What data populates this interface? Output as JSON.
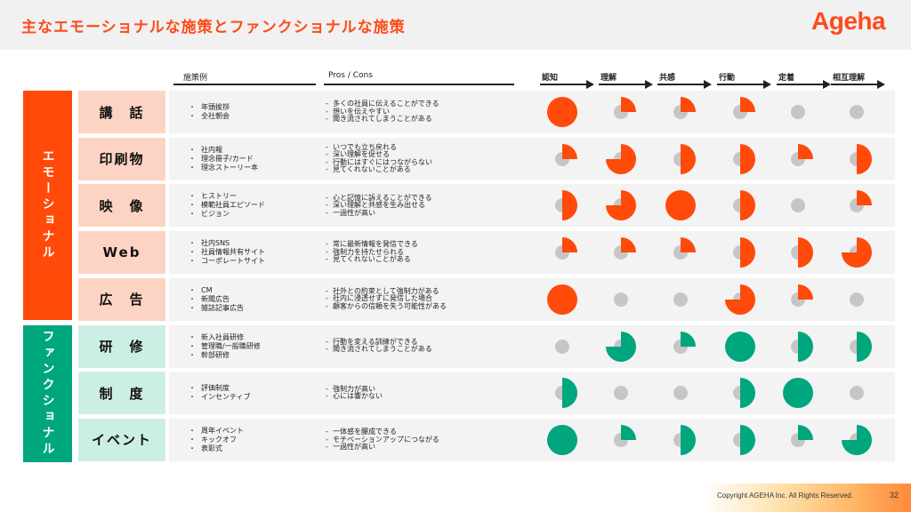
{
  "title": "主なエモーショナルな施策とファンクショナルな施策",
  "logo": "Ageha",
  "columns": {
    "examples": "施策例",
    "pros_cons": "Pros / Cons"
  },
  "stages": [
    "認知",
    "理解",
    "共感",
    "行動",
    "定着",
    "相互理解"
  ],
  "groups": [
    {
      "label": "エモーショナル",
      "color": "#ff4a0a",
      "box_color": "#fdd3c4"
    },
    {
      "label": "ファンクショナル",
      "color": "#00a67e",
      "box_color": "#ccefe5"
    }
  ],
  "rows": [
    {
      "category": "講　話",
      "group": 0,
      "examples": [
        "年頭挨拶",
        "全社朝会"
      ],
      "pros_cons": [
        "多くの社員に伝えることができる",
        "想いを伝えやすい",
        "聞き流されてしまうことがある"
      ],
      "levels": [
        1,
        0.25,
        0.25,
        0.25,
        0,
        0
      ]
    },
    {
      "category": "印刷物",
      "group": 0,
      "examples": [
        "社内報",
        "理念冊子/カード",
        "理念ストーリー本"
      ],
      "pros_cons": [
        "いつでも立ち戻れる",
        "深い理解を促せる",
        "行動にはすぐにはつながらない",
        "見てくれないことがある"
      ],
      "levels": [
        0.25,
        0.75,
        0.5,
        0.5,
        0.25,
        0.5
      ]
    },
    {
      "category": "映　像",
      "group": 0,
      "examples": [
        "ヒストリー",
        "模範社員エピソード",
        "ビジョン"
      ],
      "pros_cons": [
        "心と記憶に訴えることができる",
        "深い理解と共感を生み出せる",
        "一過性が高い"
      ],
      "levels": [
        0.5,
        0.75,
        1,
        0.5,
        0,
        0.25
      ]
    },
    {
      "category": "Web",
      "group": 0,
      "examples": [
        "社内SNS",
        "社員情報共有サイト",
        "コーポレートサイト"
      ],
      "pros_cons": [
        "常に最新情報を発信できる",
        "強制力を持たせられる",
        "見てくれないことがある"
      ],
      "levels": [
        0.25,
        0.25,
        0.25,
        0.5,
        0.5,
        0.75
      ]
    },
    {
      "category": "広　告",
      "group": 0,
      "examples": [
        "CM",
        "新聞広告",
        "雑誌記事広告"
      ],
      "pros_cons": [
        "社外との約束として強制力がある",
        "社内に浸透せずに発信した場合",
        "顧客からの信頼を失う可能性がある"
      ],
      "levels": [
        1,
        0,
        0,
        0.75,
        0.25,
        0
      ]
    },
    {
      "category": "研　修",
      "group": 1,
      "examples": [
        "新入社員研修",
        "管理職/一般職研修",
        "幹部研修"
      ],
      "pros_cons": [
        "行動を変える訓練ができる",
        "聞き流されてしまうことがある"
      ],
      "levels": [
        0,
        0.75,
        0.25,
        1,
        0.5,
        0.5
      ]
    },
    {
      "category": "制　度",
      "group": 1,
      "examples": [
        "評価制度",
        "インセンティブ"
      ],
      "pros_cons": [
        "強制力が高い",
        "心には響かない"
      ],
      "levels": [
        0.5,
        0,
        0,
        0.5,
        1,
        0
      ]
    },
    {
      "category": "イベント",
      "group": 1,
      "examples": [
        "周年イベント",
        "キックオフ",
        "表彰式"
      ],
      "pros_cons": [
        "一体感を醸成できる",
        "モチベーションアップにつながる",
        "一過性が高い"
      ],
      "levels": [
        1,
        0.25,
        0.5,
        0.5,
        0.25,
        0.75
      ]
    }
  ],
  "footer": {
    "copyright": "Copyright AGEHA Inc. All Rights Reserved.",
    "page": "32"
  },
  "colors": {
    "accent": "#ff4a1a",
    "green": "#00a67e",
    "empty_dot": "#c6c6c6"
  }
}
